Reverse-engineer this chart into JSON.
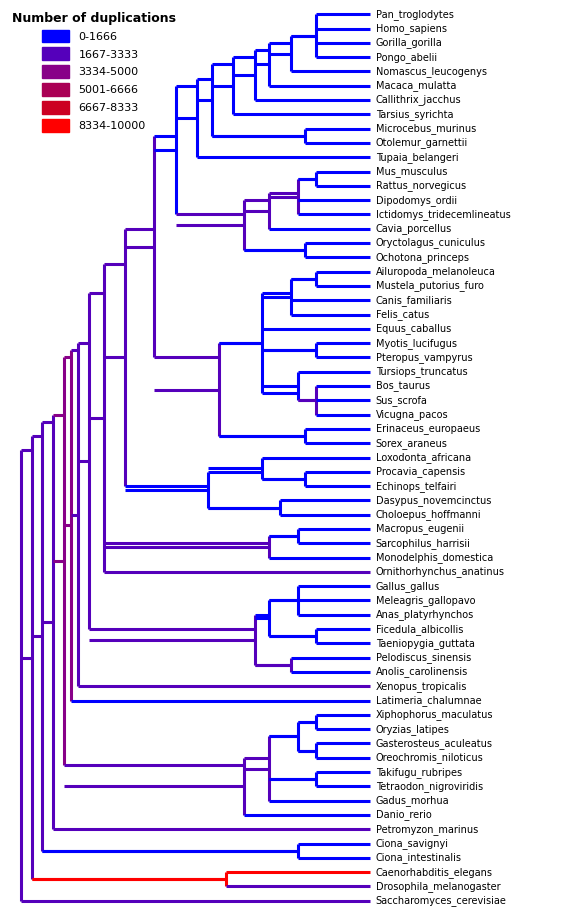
{
  "legend_title": "Number of duplications",
  "legend_entries": [
    {
      "label": "0-1666",
      "color": "#0000FF"
    },
    {
      "label": "1667-3333",
      "color": "#5500BB"
    },
    {
      "label": "3334-5000",
      "color": "#880088"
    },
    {
      "label": "5001-6666",
      "color": "#AA0055"
    },
    {
      "label": "6667-8333",
      "color": "#CC0022"
    },
    {
      "label": "8334-10000",
      "color": "#FF0000"
    }
  ],
  "taxa": [
    "Pan_troglodytes",
    "Homo_sapiens",
    "Gorilla_gorilla",
    "Pongo_abelii",
    "Nomascus_leucogenys",
    "Macaca_mulatta",
    "Callithrix_jacchus",
    "Tarsius_syrichta",
    "Microcebus_murinus",
    "Otolemur_garnettii",
    "Tupaia_belangeri",
    "Mus_musculus",
    "Rattus_norvegicus",
    "Dipodomys_ordii",
    "Ictidomys_tridecemlineatus",
    "Cavia_porcellus",
    "Oryctolagus_cuniculus",
    "Ochotona_princeps",
    "Ailuropoda_melanoleuca",
    "Mustela_putorius_furo",
    "Canis_familiaris",
    "Felis_catus",
    "Equus_caballus",
    "Myotis_lucifugus",
    "Pteropus_vampyrus",
    "Tursiops_truncatus",
    "Bos_taurus",
    "Sus_scrofa",
    "Vicugna_pacos",
    "Erinaceus_europaeus",
    "Sorex_araneus",
    "Loxodonta_africana",
    "Procavia_capensis",
    "Echinops_telfairi",
    "Dasypus_novemcinctus",
    "Choloepus_hoffmanni",
    "Macropus_eugenii",
    "Sarcophilus_harrisii",
    "Monodelphis_domestica",
    "Ornithorhynchus_anatinus",
    "Gallus_gallus",
    "Meleagris_gallopavo",
    "Anas_platyrhynchos",
    "Ficedula_albicollis",
    "Taeniopygia_guttata",
    "Pelodiscus_sinensis",
    "Anolis_carolinensis",
    "Xenopus_tropicalis",
    "Latimeria_chalumnae",
    "Xiphophorus_maculatus",
    "Oryzias_latipes",
    "Gasterosteus_aculeatus",
    "Oreochromis_niloticus",
    "Takifugu_rubripes",
    "Tetraodon_nigroviridis",
    "Gadus_morhua",
    "Danio_rerio",
    "Petromyzon_marinus",
    "Ciona_savignyi",
    "Ciona_intestinalis",
    "Caenorhabditis_elegans",
    "Drosophila_melanogaster",
    "Saccharomyces_cerevisiae"
  ],
  "background_color": "#FFFFFF",
  "line_width": 2.2,
  "label_fontsize": 7.0
}
